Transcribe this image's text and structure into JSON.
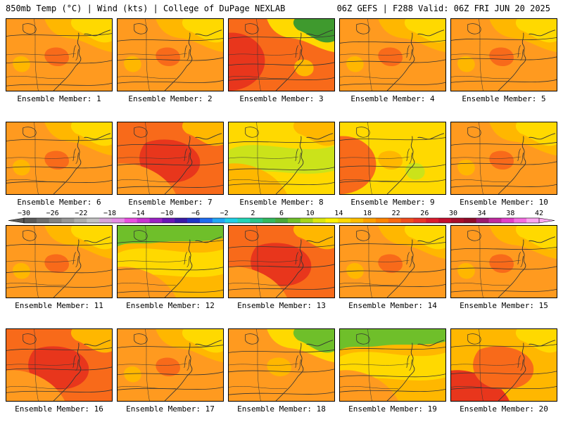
{
  "header": {
    "left_title": "850mb Temp (°C) | Wind (kts) | College of DuPage NEXLAB",
    "right_title": "06Z GEFS | F288 Valid: 06Z FRI JUN 20 2025"
  },
  "panels": [
    {
      "label": "Ensemble Member: 1",
      "scheme": "warm"
    },
    {
      "label": "Ensemble Member: 2",
      "scheme": "warm"
    },
    {
      "label": "Ensemble Member: 3",
      "scheme": "hot-green-ne"
    },
    {
      "label": "Ensemble Member: 4",
      "scheme": "warm"
    },
    {
      "label": "Ensemble Member: 5",
      "scheme": "warm"
    },
    {
      "label": "Ensemble Member: 6",
      "scheme": "warm"
    },
    {
      "label": "Ensemble Member: 7",
      "scheme": "hot"
    },
    {
      "label": "Ensemble Member: 8",
      "scheme": "cool"
    },
    {
      "label": "Ensemble Member: 9",
      "scheme": "mild"
    },
    {
      "label": "Ensemble Member: 10",
      "scheme": "warm"
    },
    {
      "label": "Ensemble Member: 11",
      "scheme": "warm"
    },
    {
      "label": "Ensemble Member: 12",
      "scheme": "cool-green-n"
    },
    {
      "label": "Ensemble Member: 13",
      "scheme": "hot"
    },
    {
      "label": "Ensemble Member: 14",
      "scheme": "warm"
    },
    {
      "label": "Ensemble Member: 15",
      "scheme": "warm"
    },
    {
      "label": "Ensemble Member: 16",
      "scheme": "hot"
    },
    {
      "label": "Ensemble Member: 17",
      "scheme": "warm"
    },
    {
      "label": "Ensemble Member: 18",
      "scheme": "mild-green-ne"
    },
    {
      "label": "Ensemble Member: 19",
      "scheme": "cool-green-n"
    },
    {
      "label": "Ensemble Member: 20",
      "scheme": "hot-sw"
    }
  ],
  "colorbar": {
    "tick_labels": [
      "-30",
      "-26",
      "-22",
      "-18",
      "-14",
      "-10",
      "-6",
      "-2",
      "2",
      "6",
      "10",
      "14",
      "18",
      "22",
      "26",
      "30",
      "34",
      "38",
      "42"
    ],
    "colors": [
      "#5a5a5a",
      "#6e6e6e",
      "#828282",
      "#979797",
      "#adadad",
      "#c3c3c3",
      "#d7a5d9",
      "#e58ce6",
      "#e94fe0",
      "#c835d1",
      "#9a22c4",
      "#6a16b6",
      "#3a1aa8",
      "#1e36c8",
      "#1f6cf0",
      "#22a6f5",
      "#20d0e6",
      "#25d3b5",
      "#2ac58a",
      "#33b860",
      "#4aa83a",
      "#6fbf2a",
      "#a6d51a",
      "#dbe70f",
      "#fff200",
      "#ffd800",
      "#ffbe00",
      "#ffa000",
      "#ff8400",
      "#f86a12",
      "#f04e1f",
      "#e8362a",
      "#da1c2e",
      "#c20f2e",
      "#a80d2c",
      "#8f0b2a",
      "#9c1a70",
      "#c02aa0",
      "#e23fc8",
      "#f56ee2",
      "#fba6f0"
    ]
  },
  "colors": {
    "yellow": "#ffd900",
    "gold": "#ffb700",
    "orange": "#ff9a1f",
    "dark-orange": "#f86a1a",
    "red": "#e8361c",
    "yellow-green": "#cbe31a",
    "green": "#6fbf2a",
    "dark-green": "#3f9a2e"
  }
}
